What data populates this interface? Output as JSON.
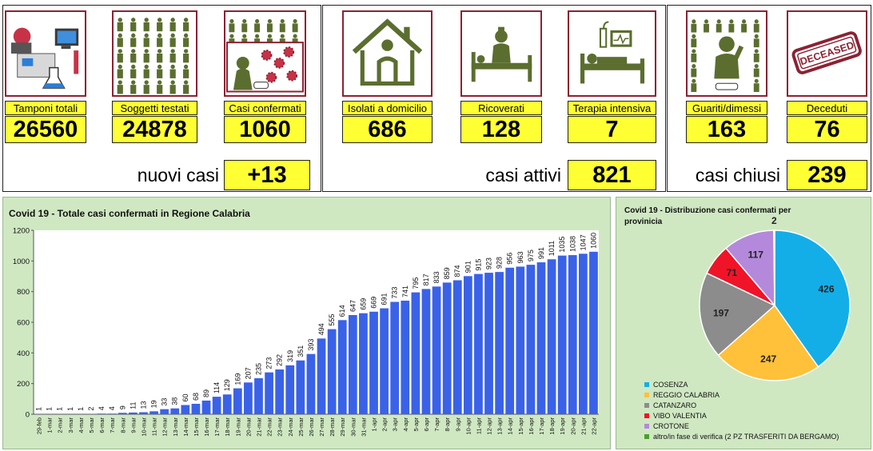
{
  "stats": {
    "tamponi": {
      "label": "Tamponi totali",
      "value": "26560"
    },
    "soggetti": {
      "label": "Soggetti testati",
      "value": "24878"
    },
    "confermati": {
      "label": "Casi confermati",
      "value": "1060"
    },
    "isolati": {
      "label": "Isolati a domicilio",
      "value": "686"
    },
    "ricoverati": {
      "label": "Ricoverati",
      "value": "128"
    },
    "terapia": {
      "label": "Terapia intensiva",
      "value": "7"
    },
    "guariti": {
      "label": "Guariti/dimessi",
      "value": "163"
    },
    "deceduti": {
      "label": "Deceduti",
      "value": "76"
    }
  },
  "summary": {
    "nuovi": {
      "label": "nuovi casi",
      "value": "+13"
    },
    "attivi": {
      "label": "casi attivi",
      "value": "821"
    },
    "chiusi": {
      "label": "casi chiusi",
      "value": "239"
    }
  },
  "stamp_text": "DECEASED",
  "colors": {
    "yellow": "#ffff33",
    "tile_border": "#8b2232",
    "icon_olive": "#5b6e2f",
    "bar": "#3a62e8",
    "panel_green": "#cfe8c2"
  },
  "chart_data": [
    {
      "type": "bar",
      "title": "Covid 19 - Totale casi confermati in Regione Calabria",
      "xlabel": "",
      "ylabel": "",
      "ylim": [
        0,
        1200
      ],
      "yticks": [
        0,
        200,
        400,
        600,
        800,
        1000,
        1200
      ],
      "grid": false,
      "categories": [
        "29-feb",
        "1-mar",
        "2-mar",
        "3-mar",
        "4-mar",
        "5-mar",
        "6-mar",
        "7-mar",
        "8-mar",
        "9-mar",
        "10-mar",
        "11-mar",
        "12-mar",
        "13-mar",
        "14-mar",
        "15-mar",
        "16-mar",
        "17-mar",
        "18-mar",
        "19-mar",
        "20-mar",
        "21-mar",
        "22-mar",
        "23-mar",
        "24-mar",
        "25-mar",
        "26-mar",
        "27-mar",
        "28-mar",
        "29-mar",
        "30-mar",
        "31-mar",
        "1-apr",
        "2-apr",
        "3-apr",
        "4-apr",
        "5-apr",
        "6-apr",
        "7-apr",
        "8-apr",
        "9-apr",
        "10-apr",
        "11-apr",
        "12-apr",
        "13-apr",
        "14-apr",
        "15-apr",
        "16-apr",
        "17-apr",
        "18-apr",
        "19-apr",
        "20-apr",
        "21-apr",
        "22-apr"
      ],
      "values": [
        1,
        1,
        1,
        1,
        1,
        2,
        4,
        4,
        9,
        11,
        13,
        19,
        33,
        38,
        60,
        68,
        89,
        114,
        129,
        169,
        207,
        235,
        273,
        292,
        319,
        351,
        393,
        494,
        555,
        614,
        647,
        659,
        669,
        691,
        733,
        741,
        795,
        817,
        833,
        859,
        874,
        901,
        915,
        923,
        928,
        956,
        963,
        975,
        991,
        1011,
        1035,
        1038,
        1047,
        1060
      ]
    },
    {
      "type": "pie",
      "title": "Covid 19 - Distribuzione casi confermati per provinicia",
      "slices": [
        {
          "label": "COSENZA",
          "value": 426,
          "color": "#13aee8"
        },
        {
          "label": "REGGIO CALABRIA",
          "value": 247,
          "color": "#ffc03a"
        },
        {
          "label": "CATANZARO",
          "value": 197,
          "color": "#8c8c8c"
        },
        {
          "label": "VIBO VALENTIA",
          "value": 71,
          "color": "#f01428"
        },
        {
          "label": "CROTONE",
          "value": 117,
          "color": "#b489db"
        },
        {
          "label": "altro/in fase di verifica (2 PZ TRASFERITI DA BERGAMO)",
          "value": 2,
          "color": "#4aa02c"
        }
      ]
    }
  ]
}
